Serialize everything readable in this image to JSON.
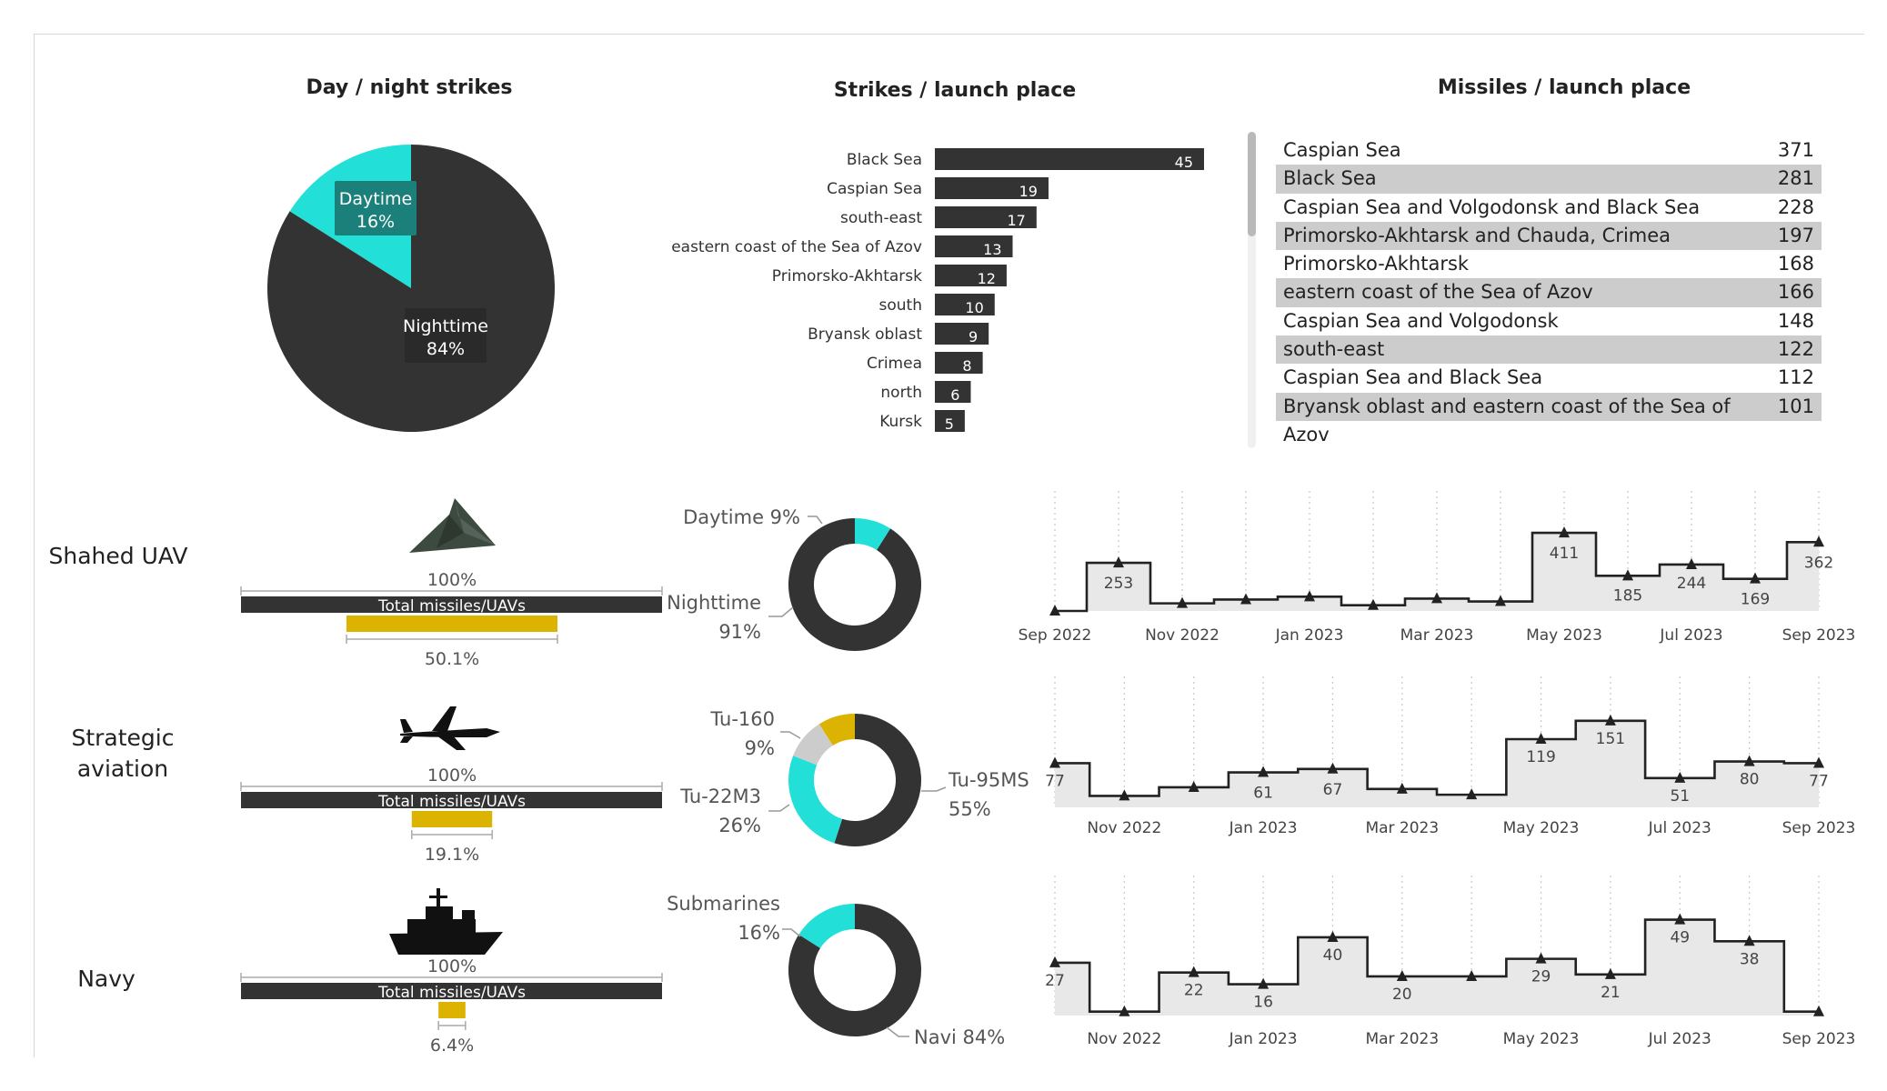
{
  "titles": {
    "day_night": "Day / night strikes",
    "strikes_launch": "Strikes / launch place",
    "missiles_launch": "Missiles / launch place"
  },
  "colors": {
    "dark": "#333333",
    "cyan": "#22e0d8",
    "gold": "#dbb300",
    "gray": "#cccccc",
    "area": "#e8e8e8"
  },
  "icons": {
    "shahed": "shahed-drone-icon",
    "aviation": "bomber-plane-icon",
    "navy": "warship-icon"
  },
  "rows": [
    {
      "label": "Shahed UAV",
      "label_lines": [
        "Shahed UAV"
      ],
      "pct_top": "100%",
      "bar_label": "Total missiles/UAVs",
      "share": 0.501,
      "share_label": "50.1%"
    },
    {
      "label": "Strategic aviation",
      "label_lines": [
        "Strategic",
        "aviation"
      ],
      "pct_top": "100%",
      "bar_label": "Total missiles/UAVs",
      "share": 0.191,
      "share_label": "19.1%"
    },
    {
      "label": "Navy",
      "label_lines": [
        "Navy"
      ],
      "pct_top": "100%",
      "bar_label": "Total missiles/UAVs",
      "share": 0.064,
      "share_label": "6.4%"
    }
  ],
  "missiles_table": [
    {
      "place": "Caspian Sea",
      "value": "371"
    },
    {
      "place": "Black Sea",
      "value": "281"
    },
    {
      "place": "Caspian Sea and Volgodonsk and Black Sea",
      "value": "228"
    },
    {
      "place": "Primorsko-Akhtarsk and Chauda, Crimea",
      "value": "197"
    },
    {
      "place": "Primorsko-Akhtarsk",
      "value": "168"
    },
    {
      "place": "eastern coast of the Sea of Azov",
      "value": "166"
    },
    {
      "place": "Caspian Sea and Volgodonsk",
      "value": "148"
    },
    {
      "place": "south-east",
      "value": "122"
    },
    {
      "place": "Caspian Sea and Black Sea",
      "value": "112"
    },
    {
      "place": "Bryansk oblast and eastern coast of the Sea of Azov",
      "value": "101"
    }
  ],
  "chart_data": [
    {
      "id": "day-night-pie",
      "type": "pie",
      "title": "Day / night strikes",
      "slices": [
        {
          "name": "Daytime",
          "value": 16,
          "label": "16%",
          "color": "#22e0d8"
        },
        {
          "name": "Nighttime",
          "value": 84,
          "label": "84%",
          "color": "#333333"
        }
      ]
    },
    {
      "id": "strikes-launch-bar",
      "type": "bar",
      "orientation": "horizontal",
      "title": "Strikes / launch place",
      "categories": [
        "Black Sea",
        "Caspian Sea",
        "south-east",
        "eastern coast of the Sea of Azov",
        "Primorsko-Akhtarsk",
        "south",
        "Bryansk oblast",
        "Crimea",
        "north",
        "Kursk"
      ],
      "values": [
        45,
        19,
        17,
        13,
        12,
        10,
        9,
        8,
        6,
        5
      ],
      "color": "#333333"
    },
    {
      "id": "shahed-donut",
      "type": "pie",
      "style": "donut",
      "slices": [
        {
          "name": "Daytime",
          "value": 9,
          "label": "9%",
          "color": "#22e0d8"
        },
        {
          "name": "Nighttime",
          "value": 91,
          "label": "91%",
          "color": "#333333"
        }
      ]
    },
    {
      "id": "aviation-donut",
      "type": "pie",
      "style": "donut",
      "slices": [
        {
          "name": "Tu-95MS",
          "value": 55,
          "label": "55%",
          "color": "#333333"
        },
        {
          "name": "Tu-22M3",
          "value": 26,
          "label": "26%",
          "color": "#22e0d8"
        },
        {
          "name": "",
          "value": 10,
          "label": "",
          "color": "#cccccc"
        },
        {
          "name": "Tu-160",
          "value": 9,
          "label": "9%",
          "color": "#dbb300"
        }
      ]
    },
    {
      "id": "navy-donut",
      "type": "pie",
      "style": "donut",
      "slices": [
        {
          "name": "Navi",
          "value": 84,
          "label": "84%",
          "color": "#333333"
        },
        {
          "name": "Submarines",
          "value": 16,
          "label": "16%",
          "color": "#22e0d8"
        }
      ]
    },
    {
      "id": "shahed-timeline",
      "type": "area",
      "step": true,
      "x": [
        "2022-09",
        "2022-10",
        "2022-11",
        "2022-12",
        "2023-01",
        "2023-02",
        "2023-03",
        "2023-04",
        "2023-05",
        "2023-06",
        "2023-07",
        "2023-08",
        "2023-09"
      ],
      "y": [
        0,
        253,
        40,
        60,
        75,
        30,
        65,
        50,
        411,
        185,
        244,
        169,
        362
      ],
      "point_labels": [
        "",
        "253",
        "",
        "",
        "",
        "",
        "",
        "",
        "411",
        "185",
        "244",
        "169",
        "362"
      ],
      "x_ticks": [
        "Sep 2022",
        "Nov 2022",
        "Jan 2023",
        "Mar 2023",
        "May 2023",
        "Jul 2023",
        "Sep 2023"
      ],
      "ylim": [
        0,
        440
      ]
    },
    {
      "id": "aviation-timeline",
      "type": "area",
      "step": true,
      "x": [
        "2022-10",
        "2022-11",
        "2022-12",
        "2023-01",
        "2023-02",
        "2023-03",
        "2023-04",
        "2023-05",
        "2023-06",
        "2023-07",
        "2023-08",
        "2023-09"
      ],
      "y": [
        77,
        20,
        35,
        61,
        67,
        32,
        22,
        119,
        151,
        51,
        80,
        77
      ],
      "point_labels": [
        "77",
        "",
        "",
        "61",
        "67",
        "",
        "",
        "119",
        "151",
        "51",
        "80",
        "77"
      ],
      "x_ticks": [
        "Nov 2022",
        "Jan 2023",
        "Mar 2023",
        "May 2023",
        "Jul 2023",
        "Sep 2023"
      ],
      "ylim": [
        0,
        165
      ]
    },
    {
      "id": "navy-timeline",
      "type": "area",
      "step": true,
      "x": [
        "2022-10",
        "2022-11",
        "2022-12",
        "2023-01",
        "2023-02",
        "2023-03",
        "2023-04",
        "2023-05",
        "2023-06",
        "2023-07",
        "2023-08",
        "2023-09"
      ],
      "y": [
        27,
        2,
        22,
        16,
        40,
        20,
        20,
        29,
        21,
        49,
        38,
        2
      ],
      "point_labels": [
        "27",
        "",
        "22",
        "16",
        "40",
        "20",
        "",
        "29",
        "21",
        "49",
        "38",
        ""
      ],
      "x_ticks": [
        "Nov 2022",
        "Jan 2023",
        "Mar 2023",
        "May 2023",
        "Jul 2023",
        "Sep 2023"
      ],
      "ylim": [
        0,
        53
      ]
    }
  ]
}
